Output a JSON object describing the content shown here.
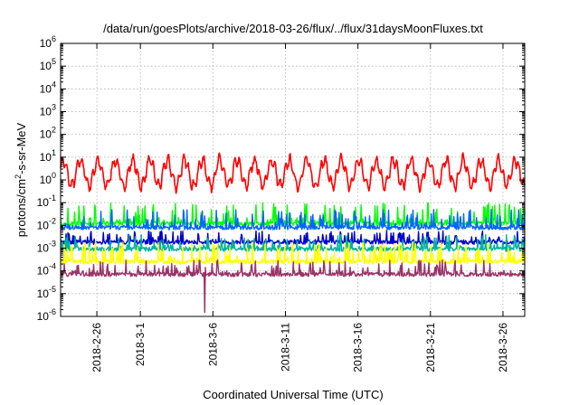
{
  "chart_data": {
    "type": "line",
    "title": "/data/run/goesPlots/archive/2018-03-26/flux/../flux/31daysMoonFluxes.txt",
    "xlabel": "Coordinated Universal Time (UTC)",
    "ylabel": {
      "base": "protons/cm",
      "sup": "2",
      "rest": "-s-sr-MeV"
    },
    "y_scale": "log",
    "ylim": [
      1e-06,
      1000000.0
    ],
    "y_ticks": [
      {
        "exp": "-6",
        "value": 1e-06
      },
      {
        "exp": "-5",
        "value": 1e-05
      },
      {
        "exp": "-4",
        "value": 0.0001
      },
      {
        "exp": "-3",
        "value": 0.001
      },
      {
        "exp": "-2",
        "value": 0.01
      },
      {
        "exp": "-1",
        "value": 0.1
      },
      {
        "exp": "0",
        "value": 1
      },
      {
        "exp": "1",
        "value": 10
      },
      {
        "exp": "2",
        "value": 100
      },
      {
        "exp": "3",
        "value": 1000
      },
      {
        "exp": "4",
        "value": 10000.0
      },
      {
        "exp": "5",
        "value": 100000.0
      },
      {
        "exp": "6",
        "value": 1000000.0
      }
    ],
    "xlim": [
      "2018-02-23T12:00",
      "2018-03-27T12:00"
    ],
    "x_ticks": [
      "2018-2-26",
      "2018-3-1",
      "2018-3-6",
      "2018-3-11",
      "2018-3-16",
      "2018-3-21",
      "2018-3-26"
    ],
    "x_tick_dates": [
      "2018-02-26",
      "2018-03-01",
      "2018-03-06",
      "2018-03-11",
      "2018-03-16",
      "2018-03-21",
      "2018-03-26"
    ],
    "grid": true,
    "series": [
      {
        "color": "#ff0000",
        "baseline": 2.0,
        "lo": 0.2,
        "hi": 30,
        "period_days": 1.2
      },
      {
        "color": "#00ff00",
        "baseline": 0.012,
        "lo": 0.0065,
        "hi": 0.1,
        "period_days": 0.9
      },
      {
        "color": "#0066ff",
        "baseline": 0.008,
        "lo": 0.004,
        "hi": 0.05,
        "period_days": 0.75
      },
      {
        "color": "#0000cc",
        "baseline": 0.0018,
        "lo": 0.0008,
        "hi": 0.006,
        "period_days": 0.7
      },
      {
        "color": "#00b3a0",
        "baseline": 0.0009,
        "lo": 0.0006,
        "hi": 0.004,
        "period_days": 0.6
      },
      {
        "color": "#ffff00",
        "baseline": 0.00025,
        "lo": 8e-05,
        "hi": 0.002,
        "period_days": 0.5
      },
      {
        "color": "#993366",
        "baseline": 7e-05,
        "lo": 1.5e-06,
        "hi": 0.0003,
        "period_days": 0.45
      }
    ]
  }
}
